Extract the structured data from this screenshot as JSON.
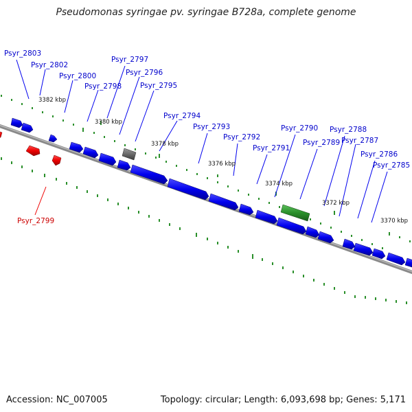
{
  "title": "Pseudomonas syringae pv. syringae B728a, complete genome",
  "footer": {
    "accession": "Accession: NC_007005",
    "summary": "Topology: circular; Length: 6,093,698 bp; Genes: 5,171"
  },
  "colors": {
    "forward_gene": "#0000ff",
    "reverse_gene": "#ff0000",
    "rna_gene": "#2a8f2a",
    "pseudo_gene": "#666666",
    "backbone": "#808080",
    "tick": "#2a8f2a",
    "forward_label": "#0000cc",
    "reverse_label": "#cc0000"
  },
  "scale_labels": [
    "3382 kbp",
    "3380 kbp",
    "3378 kbp",
    "3376 kbp",
    "3374 kbp",
    "3372 kbp",
    "3370 kbp"
  ],
  "gene_labels": [
    {
      "text": "Psyr_2803",
      "strand": "forward"
    },
    {
      "text": "Psyr_2802",
      "strand": "forward"
    },
    {
      "text": "Psyr_2800",
      "strand": "forward"
    },
    {
      "text": "Psyr_2798",
      "strand": "forward"
    },
    {
      "text": "Psyr_2797",
      "strand": "forward"
    },
    {
      "text": "Psyr_2796",
      "strand": "forward"
    },
    {
      "text": "Psyr_2795",
      "strand": "forward"
    },
    {
      "text": "Psyr_2794",
      "strand": "forward"
    },
    {
      "text": "Psyr_2793",
      "strand": "forward"
    },
    {
      "text": "Psyr_2792",
      "strand": "forward"
    },
    {
      "text": "Psyr_2791",
      "strand": "forward"
    },
    {
      "text": "Psyr_2790",
      "strand": "forward"
    },
    {
      "text": "Psyr_2789",
      "strand": "forward"
    },
    {
      "text": "Psyr_2788",
      "strand": "forward"
    },
    {
      "text": "Psyr_2787",
      "strand": "forward"
    },
    {
      "text": "Psyr_2786",
      "strand": "forward"
    },
    {
      "text": "Psyr_2785",
      "strand": "forward"
    },
    {
      "text": "Psyr_2799",
      "strand": "reverse"
    }
  ]
}
